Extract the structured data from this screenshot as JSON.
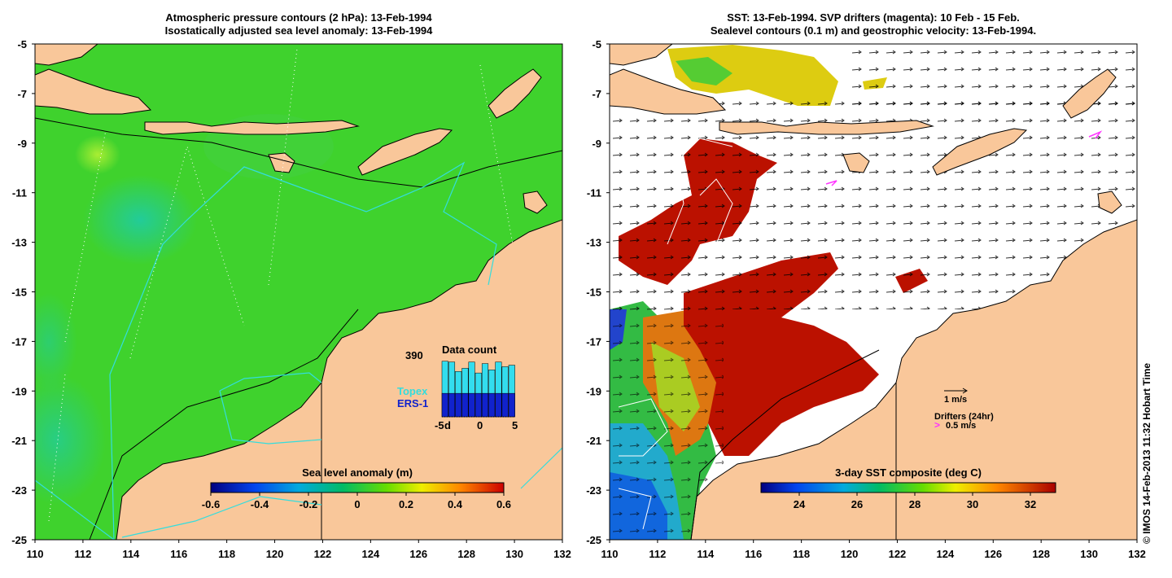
{
  "left_panel": {
    "title_line1": "Atmospheric pressure contours (2 hPa): 13-Feb-1994",
    "title_line2": "Isostatically adjusted sea level anomaly: 13-Feb-1994",
    "x_ticks": [
      "110",
      "112",
      "114",
      "116",
      "118",
      "120",
      "122",
      "124",
      "126",
      "128",
      "130",
      "132"
    ],
    "y_ticks": [
      "-5",
      "-7",
      "-9",
      "-11",
      "-13",
      "-15",
      "-17",
      "-19",
      "-21",
      "-23",
      "-25"
    ],
    "colorbar_title": "Sea level anomaly (m)",
    "colorbar_ticks": [
      "-0.6",
      "-0.4",
      "-0.2",
      "0",
      "0.2",
      "0.4",
      "0.6"
    ],
    "inset": {
      "title": "Data count",
      "max_label": "390",
      "legend_topex": "Topex",
      "legend_ers": "ERS-1",
      "x_tick_left": "-5",
      "x_tick_d": "d",
      "x_tick_mid": "0",
      "x_tick_right": "5",
      "topex_counts": [
        355,
        350,
        290,
        310,
        350,
        280,
        340,
        300,
        350,
        320,
        330
      ],
      "ers_counts": [
        150,
        150,
        150,
        150,
        150,
        150,
        150,
        150,
        150,
        150,
        150
      ],
      "topex_color": "#33ddee",
      "ers_color": "#1122cc"
    }
  },
  "right_panel": {
    "title_line1": "SST: 13-Feb-1994. SVP drifters (magenta): 10 Feb - 15 Feb.",
    "title_line2": "Sealevel contours (0.1 m) and geostrophic velocity: 13-Feb-1994.",
    "x_ticks": [
      "110",
      "112",
      "114",
      "116",
      "118",
      "120",
      "122",
      "124",
      "126",
      "128",
      "130",
      "132"
    ],
    "y_ticks": [
      "-5",
      "-7",
      "-9",
      "-11",
      "-13",
      "-15",
      "-17",
      "-19",
      "-21",
      "-23",
      "-25"
    ],
    "colorbar_title": "3-day SST composite (deg C)",
    "colorbar_ticks": [
      "24",
      "26",
      "28",
      "30",
      "32"
    ],
    "velocity_scale_label": "1 m/s",
    "drifters_label": "Drifters (24hr)",
    "drifter_scale_label": "0.5 m/s"
  },
  "copyright": "© IMOS 14-Feb-2013 11:32 Hobart Time",
  "colors": {
    "land": "#f9c79a",
    "ocean_sla": "#33cc33",
    "drifter": "#ff33ff",
    "track": "#33dddd"
  }
}
